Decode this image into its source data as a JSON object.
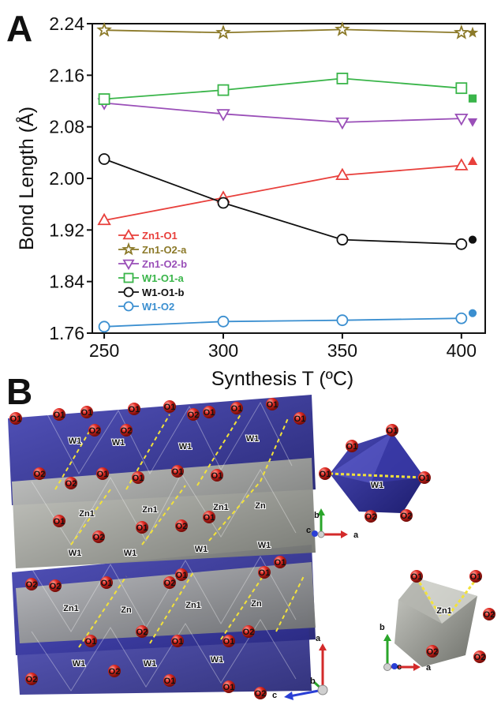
{
  "panels": {
    "a_label": "A",
    "b_label": "B"
  },
  "chart_data": {
    "type": "line",
    "title": "",
    "xlabel": "Synthesis T (ºC)",
    "ylabel": "Bond Length (Å)",
    "x": [
      250,
      300,
      350,
      400
    ],
    "xticks": [
      "250",
      "300",
      "350",
      "400"
    ],
    "yticks": [
      "1.76",
      "1.84",
      "1.92",
      "2.00",
      "2.08",
      "2.16",
      "2.24"
    ],
    "xlim": [
      245,
      410
    ],
    "ylim": [
      1.76,
      2.24
    ],
    "grid": false,
    "legend_position": "lower-left",
    "series": [
      {
        "name": "Zn1-O1",
        "values": [
          1.935,
          1.97,
          2.005,
          2.02
        ],
        "reference": 2.026,
        "marker": "triangle-up",
        "color": "#e8403c"
      },
      {
        "name": "Zn1-O2-a",
        "values": [
          2.23,
          2.226,
          2.231,
          2.226
        ],
        "reference": 2.226,
        "marker": "star",
        "color": "#8c7a2a"
      },
      {
        "name": "Zn1-O2-b",
        "values": [
          2.117,
          2.1,
          2.087,
          2.093
        ],
        "reference": 2.088,
        "marker": "triangle-down",
        "color": "#9a4fb8"
      },
      {
        "name": "W1-O1-a",
        "values": [
          2.123,
          2.137,
          2.155,
          2.14
        ],
        "reference": 2.124,
        "marker": "square",
        "color": "#3ab54a"
      },
      {
        "name": "W1-O1-b",
        "values": [
          2.03,
          1.962,
          1.905,
          1.898
        ],
        "reference": 1.905,
        "marker": "circle",
        "color": "#111111"
      },
      {
        "name": "W1-O2",
        "values": [
          1.77,
          1.778,
          1.78,
          1.783
        ],
        "reference": 1.791,
        "marker": "circle",
        "color": "#3b8fd0"
      }
    ]
  },
  "structure": {
    "main_labels": [
      "O1",
      "O1",
      "O1",
      "O1",
      "O2",
      "O2",
      "O1",
      "O2",
      "O1",
      "O1",
      "O1",
      "O1",
      "W1",
      "W1",
      "W1",
      "W1",
      "O2",
      "O2",
      "O1",
      "O1",
      "O1",
      "O1",
      "Zn1",
      "Zn1",
      "Zn1",
      "Zn",
      "O1",
      "O1",
      "O2",
      "O2",
      "O1",
      "W1",
      "W1",
      "W1",
      "W1",
      "O2",
      "O2",
      "O1",
      "O1",
      "O2",
      "O1",
      "O1",
      "Zn1",
      "Zn",
      "Zn1",
      "Zn",
      "O2",
      "O2",
      "O1",
      "O1",
      "O1",
      "W1",
      "W1",
      "W1",
      "O2",
      "O2",
      "O1",
      "O1",
      "O2"
    ],
    "w_octahedron_labels": [
      "O1",
      "O1",
      "O1",
      "O1",
      "W1",
      "O2",
      "O2"
    ],
    "zn_octahedron_labels": [
      "O1",
      "O1",
      "Zn1",
      "O2",
      "O2",
      "O2"
    ],
    "axes1": {
      "b": "b",
      "c": "c",
      "a": "a"
    },
    "axes2": {
      "b": "b",
      "c": "c",
      "a": "a"
    },
    "axes3": {
      "a": "a",
      "b": "b",
      "c": "c"
    }
  },
  "colors": {
    "w_polyhedron": "#2f2f8f",
    "zn_polyhedron": "#8f918a",
    "oxygen": "#d42020",
    "bond_dashed": "#f2e23a"
  }
}
